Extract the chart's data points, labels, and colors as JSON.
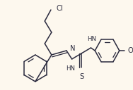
{
  "bg_color": "#fdf8ee",
  "line_color": "#2a2a3e",
  "line_width": 1.1,
  "text_color": "#2a2a3e",
  "font_size": 6.2,
  "cl_label": "Cl",
  "n_label": "N",
  "hn1_label": "HN",
  "s_label": "S",
  "hn2_label": "HN",
  "o_label": "O"
}
